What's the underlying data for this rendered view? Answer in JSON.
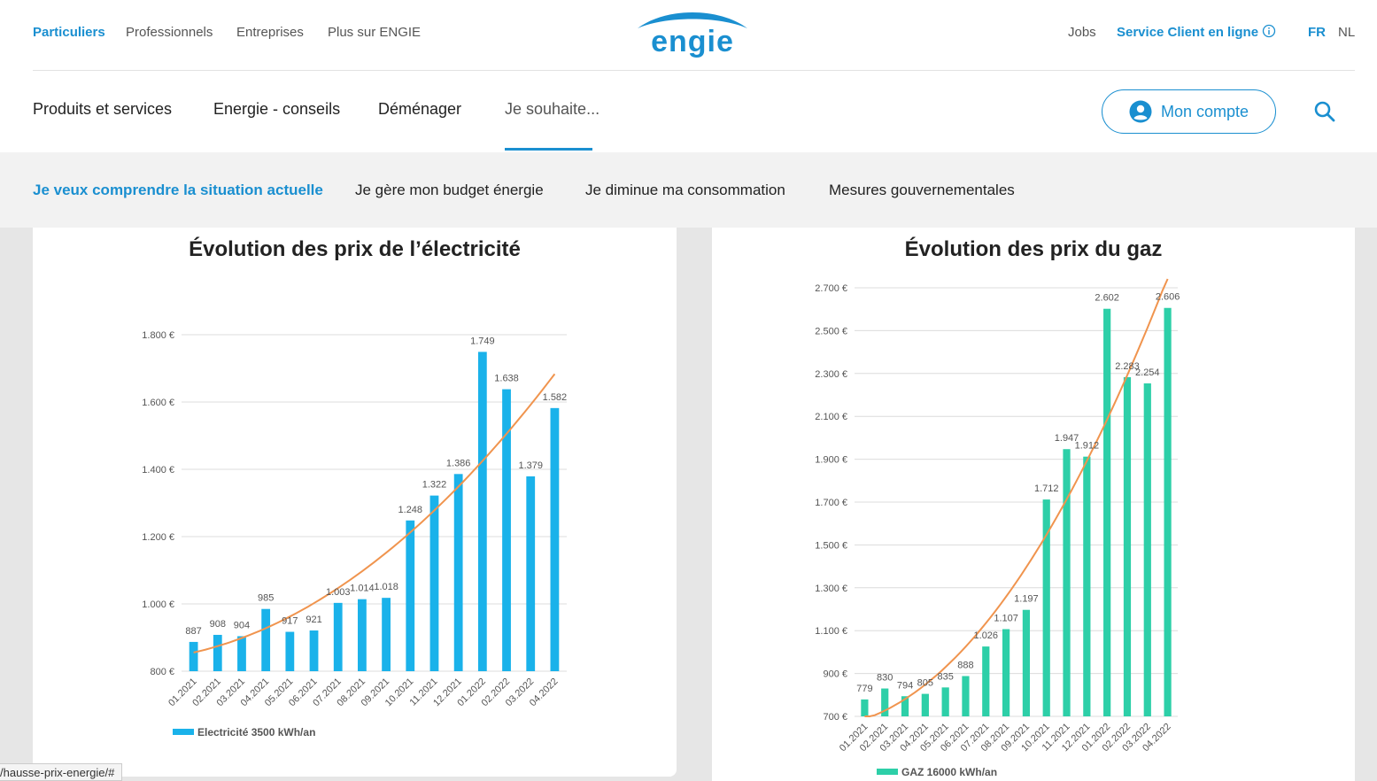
{
  "colors": {
    "accent": "#1a8fd0",
    "electricity_bar": "#1ab2ea",
    "gas_bar": "#2dcfa8",
    "trend": "#f0944e"
  },
  "topbar": {
    "segments": [
      {
        "label": "Particuliers",
        "active": true
      },
      {
        "label": "Professionnels"
      },
      {
        "label": "Entreprises"
      },
      {
        "label": "Plus sur ENGIE"
      }
    ],
    "logo_text": "engie",
    "jobs": "Jobs",
    "service_client": "Service Client en ligne",
    "info_icon": "info-icon",
    "lang_fr": "FR",
    "lang_nl": "NL"
  },
  "mainnav": {
    "items": [
      {
        "label": "Produits et services"
      },
      {
        "label": "Energie - conseils"
      },
      {
        "label": "Déménager"
      },
      {
        "label": "Je souhaite..."
      }
    ],
    "account_label": "Mon compte",
    "account_icon": "user-icon",
    "search_icon": "search-icon"
  },
  "subnav": {
    "items": [
      {
        "label": "Je veux comprendre la situation actuelle",
        "active": true
      },
      {
        "label": "Je gère mon budget énergie"
      },
      {
        "label": "Je diminue ma consommation"
      },
      {
        "label": "Mesures gouvernementales"
      }
    ]
  },
  "status_bar": "/hausse-prix-energie/#",
  "chart_data": [
    {
      "type": "bar",
      "title": "Évolution des prix de l’électricité",
      "categories": [
        "01.2021",
        "02.2021",
        "03.2021",
        "04.2021",
        "05.2021",
        "06.2021",
        "07.2021",
        "08.2021",
        "09.2021",
        "10.2021",
        "11.2021",
        "12.2021",
        "01.2022",
        "02.2022",
        "03.2022",
        "04.2022"
      ],
      "series": [
        {
          "name": "Electricité 3500 kWh/an",
          "values": [
            887,
            908,
            904,
            985,
            917,
            921,
            1003,
            1014,
            1018,
            1248,
            1322,
            1386,
            1749,
            1638,
            1379,
            1582
          ]
        }
      ],
      "value_labels": [
        "887",
        "908",
        "904",
        "985",
        "917",
        "921",
        "1.003",
        "1.014",
        "1.018",
        "1.248",
        "1.322",
        "1.386",
        "1.749",
        "1.638",
        "1.379",
        "1.582"
      ],
      "trendline": "polynomial",
      "ylim": [
        800,
        1800
      ],
      "yticks": [
        "800 €",
        "1.000 €",
        "1.200 €",
        "1.400 €",
        "1.600 €",
        "1.800 €"
      ],
      "grid": true,
      "legend_position": "bottom-left"
    },
    {
      "type": "bar",
      "title": "Évolution des prix du gaz",
      "categories": [
        "01.2021",
        "02.2021",
        "03.2021",
        "04.2021",
        "05.2021",
        "06.2021",
        "07.2021",
        "08.2021",
        "09.2021",
        "10.2021",
        "11.2021",
        "12.2021",
        "01.2022",
        "02.2022",
        "03.2022",
        "04.2022"
      ],
      "series": [
        {
          "name": "GAZ 16000 kWh/an",
          "values": [
            779,
            830,
            794,
            805,
            835,
            888,
            1026,
            1107,
            1197,
            1712,
            1947,
            1912,
            2602,
            2283,
            2254,
            2606
          ]
        }
      ],
      "value_labels": [
        "779",
        "830",
        "794",
        "805",
        "835",
        "888",
        "1.026",
        "1.107",
        "1.197",
        "1.712",
        "1.947",
        "1.912",
        "2.602",
        "2.283",
        "2.254",
        "2.606"
      ],
      "trendline": "polynomial",
      "ylim": [
        700,
        2700
      ],
      "yticks": [
        "700 €",
        "900 €",
        "1.100 €",
        "1.300 €",
        "1.500 €",
        "1.700 €",
        "1.900 €",
        "2.100 €",
        "2.300 €",
        "2.500 €",
        "2.700 €"
      ],
      "grid": true,
      "legend_position": "bottom-left"
    }
  ]
}
